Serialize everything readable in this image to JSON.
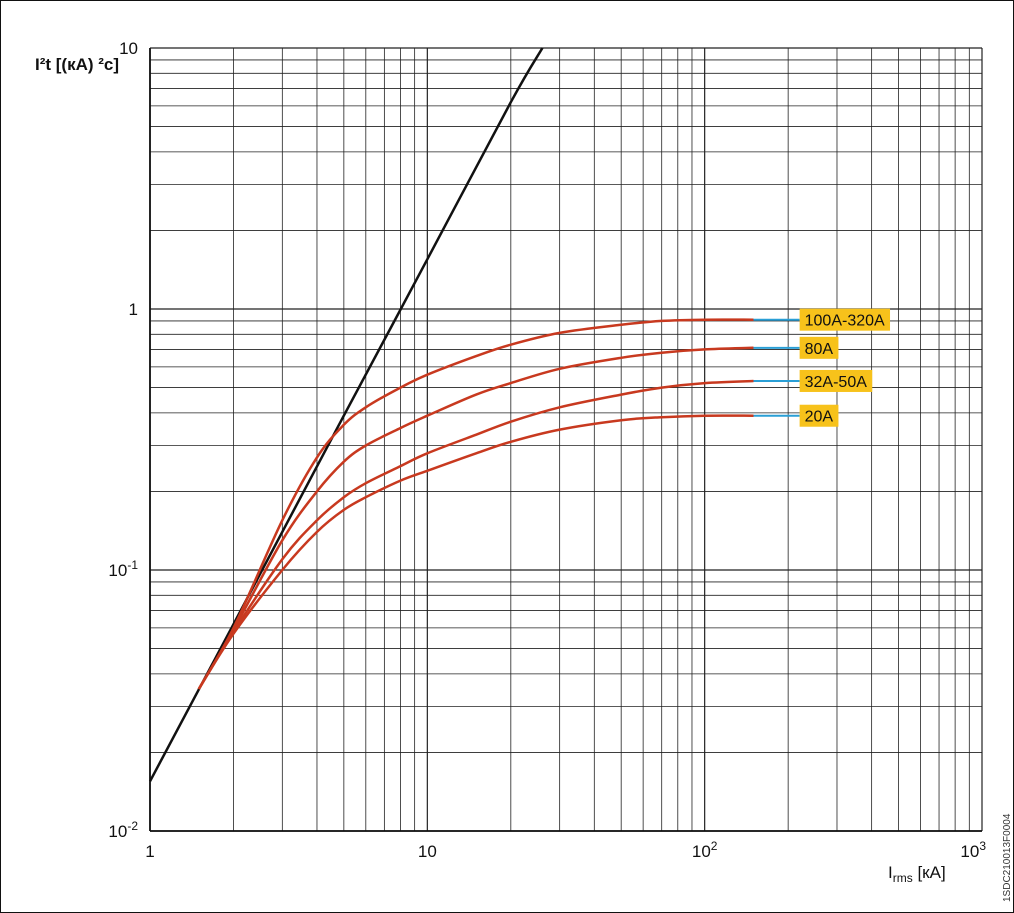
{
  "chart_data": {
    "type": "line",
    "x_scale": "log",
    "y_scale": "log",
    "xlim": [
      1,
      1000
    ],
    "ylim": [
      0.01,
      10
    ],
    "grid": true,
    "ylabel": {
      "main": "I²t [(кA) ²c]"
    },
    "xlabel": {
      "main": "I",
      "sub": "rms",
      "unit": " [кA]"
    },
    "x_ticks": [
      {
        "value": 1,
        "label": "1"
      },
      {
        "value": 10,
        "label": "10"
      },
      {
        "value": 100,
        "base": "10",
        "exp": "2"
      },
      {
        "value": 1000,
        "base": "10",
        "exp": "3"
      }
    ],
    "y_ticks": [
      {
        "value": 0.01,
        "base": "10",
        "exp": "-2"
      },
      {
        "value": 0.1,
        "base": "10",
        "exp": "-1"
      },
      {
        "value": 1,
        "label": "1"
      },
      {
        "value": 10,
        "label": "10"
      }
    ],
    "reference_line": {
      "color": "#111111",
      "x": [
        1,
        2,
        5,
        10,
        20,
        26
      ],
      "y": [
        0.0155,
        0.062,
        0.39,
        1.55,
        6.2,
        10.0
      ]
    },
    "series": [
      {
        "name": "100A-320A",
        "color": "#c8391f",
        "x": [
          1.5,
          2,
          3,
          4,
          5,
          6,
          8,
          10,
          15,
          20,
          30,
          50,
          70,
          100,
          150
        ],
        "y": [
          0.035,
          0.06,
          0.155,
          0.27,
          0.36,
          0.42,
          0.5,
          0.56,
          0.66,
          0.73,
          0.81,
          0.87,
          0.9,
          0.91,
          0.91
        ]
      },
      {
        "name": "80A",
        "color": "#c8391f",
        "x": [
          1.5,
          2,
          3,
          4,
          5,
          6,
          8,
          10,
          15,
          20,
          30,
          50,
          70,
          100,
          150
        ],
        "y": [
          0.035,
          0.059,
          0.13,
          0.2,
          0.26,
          0.3,
          0.35,
          0.39,
          0.47,
          0.52,
          0.59,
          0.65,
          0.68,
          0.7,
          0.71
        ]
      },
      {
        "name": "32A-50A",
        "color": "#c8391f",
        "x": [
          1.5,
          2,
          3,
          4,
          5,
          6,
          8,
          10,
          15,
          20,
          30,
          50,
          70,
          100,
          150
        ],
        "y": [
          0.035,
          0.058,
          0.11,
          0.155,
          0.19,
          0.215,
          0.25,
          0.28,
          0.33,
          0.37,
          0.42,
          0.47,
          0.5,
          0.52,
          0.53
        ]
      },
      {
        "name": "20A",
        "color": "#c8391f",
        "x": [
          1.5,
          2,
          3,
          4,
          5,
          6,
          8,
          10,
          15,
          20,
          30,
          50,
          70,
          100,
          150
        ],
        "y": [
          0.035,
          0.057,
          0.1,
          0.14,
          0.17,
          0.19,
          0.22,
          0.24,
          0.28,
          0.31,
          0.345,
          0.375,
          0.385,
          0.39,
          0.39
        ]
      }
    ],
    "label_line_color": "#2a9fd6",
    "label_bg": "#f7c21b",
    "side_code": "1SDC210013F0004"
  }
}
